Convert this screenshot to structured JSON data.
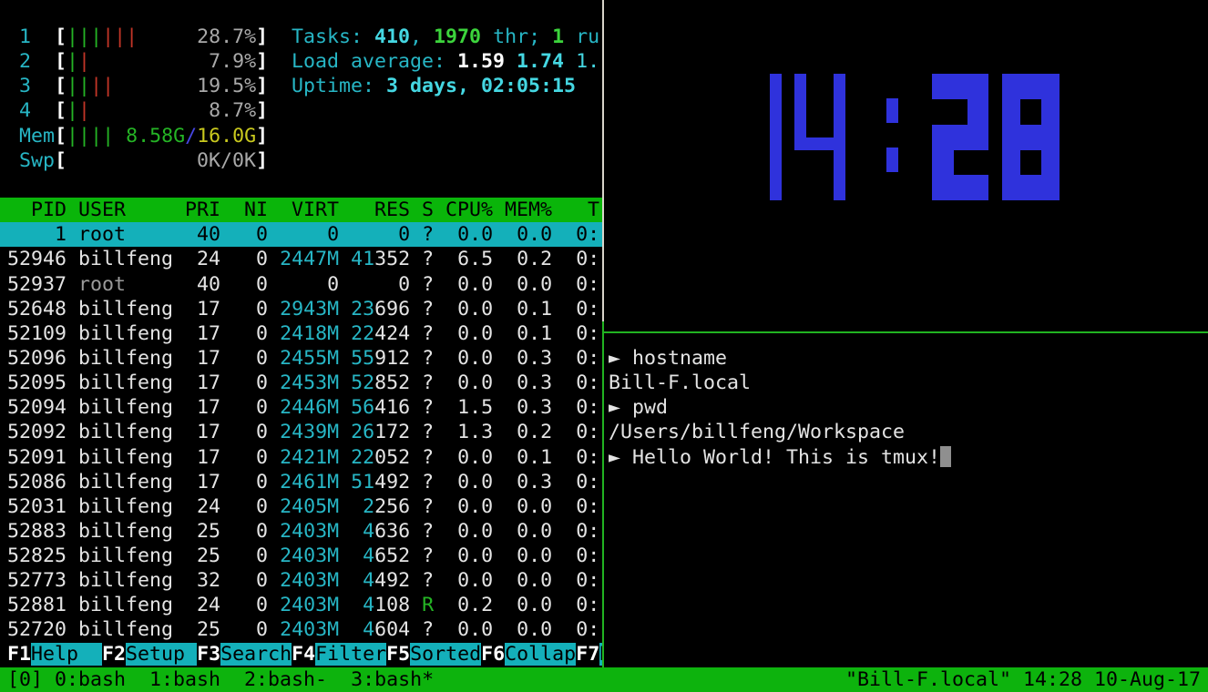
{
  "colors": {
    "accent_cyan": "#27b6c5",
    "header_green_bg": "#0ab50a",
    "selection_cyan_bg": "#14b0ba",
    "status_green_bg": "#0db30d",
    "border_green": "#21b321",
    "border_white": "#d8d5ca",
    "clock_blue": "#2f32dc",
    "bar_pipe_green": "#25b425",
    "bar_pipe_red": "#c23527",
    "mem_used_yellow": "#c9c91e"
  },
  "htop": {
    "meters": [
      {
        "label": " 1  ",
        "pipes": [
          "g",
          "g",
          "g",
          "r",
          "r",
          "r"
        ],
        "right": [
          {
            "t": "28.7%",
            "c": "gray"
          }
        ]
      },
      {
        "label": " 2  ",
        "pipes": [
          "g",
          "r"
        ],
        "right": [
          {
            "t": "7.9%",
            "c": "gray"
          }
        ]
      },
      {
        "label": " 3  ",
        "pipes": [
          "g",
          "g",
          "r",
          "r"
        ],
        "right": [
          {
            "t": "19.5%",
            "c": "gray"
          }
        ]
      },
      {
        "label": " 4  ",
        "pipes": [
          "g",
          "r"
        ],
        "right": [
          {
            "t": "8.7%",
            "c": "gray"
          }
        ]
      },
      {
        "label": " Mem",
        "pipes": [
          "g",
          "g",
          "g",
          "g"
        ],
        "right": [
          {
            "t": "8.58G",
            "c": "green"
          },
          {
            "t": "/",
            "c": "blue"
          },
          {
            "t": "16.0G",
            "c": "yellow"
          }
        ]
      },
      {
        "label": " Swp",
        "pipes": [],
        "right": [
          {
            "t": "0K/0K",
            "c": "gray"
          }
        ]
      }
    ],
    "summary_lines": [
      [
        {
          "t": "Tasks: ",
          "c": "cy"
        },
        {
          "t": "410",
          "c": "bcyb"
        },
        {
          "t": ", ",
          "c": "cy"
        },
        {
          "t": "1970",
          "c": "gb"
        },
        {
          "t": " thr; ",
          "c": "cy"
        },
        {
          "t": "1",
          "c": "gb"
        },
        {
          "t": " ru",
          "c": "cy"
        }
      ],
      [
        {
          "t": "Load average: ",
          "c": "cy"
        },
        {
          "t": "1.59",
          "c": "wb"
        },
        {
          "t": " ",
          "c": "cy"
        },
        {
          "t": "1.74",
          "c": "bcyb"
        },
        {
          "t": " 1.",
          "c": "bcy"
        }
      ],
      [
        {
          "t": "Uptime: ",
          "c": "cy"
        },
        {
          "t": "3 days, 02:05:15",
          "c": "bcyb"
        }
      ]
    ],
    "table": {
      "header": "  PID USER     PRI  NI  VIRT   RES S CPU% MEM%   T",
      "rows": [
        {
          "pid": "1",
          "user": "root",
          "pri": "40",
          "ni": "0",
          "virt": "0",
          "resPre": "",
          "resSuf": "0",
          "s": "?",
          "cpu": "0.0",
          "mem": "0.0",
          "time": "0:",
          "selected": true
        },
        {
          "pid": "52946",
          "user": "billfeng",
          "pri": "24",
          "ni": "0",
          "virt": "2447M",
          "resPre": "41",
          "resSuf": "352",
          "s": "?",
          "cpu": "6.5",
          "mem": "0.2",
          "time": "0:"
        },
        {
          "pid": "52937",
          "user": "root",
          "pri": "40",
          "ni": "0",
          "virt": "0",
          "resPre": "",
          "resSuf": "0",
          "s": "?",
          "cpu": "0.0",
          "mem": "0.0",
          "time": "0:"
        },
        {
          "pid": "52648",
          "user": "billfeng",
          "pri": "17",
          "ni": "0",
          "virt": "2943M",
          "resPre": "23",
          "resSuf": "696",
          "s": "?",
          "cpu": "0.0",
          "mem": "0.1",
          "time": "0:"
        },
        {
          "pid": "52109",
          "user": "billfeng",
          "pri": "17",
          "ni": "0",
          "virt": "2418M",
          "resPre": "22",
          "resSuf": "424",
          "s": "?",
          "cpu": "0.0",
          "mem": "0.1",
          "time": "0:"
        },
        {
          "pid": "52096",
          "user": "billfeng",
          "pri": "17",
          "ni": "0",
          "virt": "2455M",
          "resPre": "55",
          "resSuf": "912",
          "s": "?",
          "cpu": "0.0",
          "mem": "0.3",
          "time": "0:"
        },
        {
          "pid": "52095",
          "user": "billfeng",
          "pri": "17",
          "ni": "0",
          "virt": "2453M",
          "resPre": "52",
          "resSuf": "852",
          "s": "?",
          "cpu": "0.0",
          "mem": "0.3",
          "time": "0:"
        },
        {
          "pid": "52094",
          "user": "billfeng",
          "pri": "17",
          "ni": "0",
          "virt": "2446M",
          "resPre": "56",
          "resSuf": "416",
          "s": "?",
          "cpu": "1.5",
          "mem": "0.3",
          "time": "0:"
        },
        {
          "pid": "52092",
          "user": "billfeng",
          "pri": "17",
          "ni": "0",
          "virt": "2439M",
          "resPre": "26",
          "resSuf": "172",
          "s": "?",
          "cpu": "1.3",
          "mem": "0.2",
          "time": "0:"
        },
        {
          "pid": "52091",
          "user": "billfeng",
          "pri": "17",
          "ni": "0",
          "virt": "2421M",
          "resPre": "22",
          "resSuf": "052",
          "s": "?",
          "cpu": "0.0",
          "mem": "0.1",
          "time": "0:"
        },
        {
          "pid": "52086",
          "user": "billfeng",
          "pri": "17",
          "ni": "0",
          "virt": "2461M",
          "resPre": "51",
          "resSuf": "492",
          "s": "?",
          "cpu": "0.0",
          "mem": "0.3",
          "time": "0:"
        },
        {
          "pid": "52031",
          "user": "billfeng",
          "pri": "24",
          "ni": "0",
          "virt": "2405M",
          "resPre": "2",
          "resSuf": "256",
          "s": "?",
          "cpu": "0.0",
          "mem": "0.0",
          "time": "0:"
        },
        {
          "pid": "52883",
          "user": "billfeng",
          "pri": "25",
          "ni": "0",
          "virt": "2403M",
          "resPre": "4",
          "resSuf": "636",
          "s": "?",
          "cpu": "0.0",
          "mem": "0.0",
          "time": "0:"
        },
        {
          "pid": "52825",
          "user": "billfeng",
          "pri": "25",
          "ni": "0",
          "virt": "2403M",
          "resPre": "4",
          "resSuf": "652",
          "s": "?",
          "cpu": "0.0",
          "mem": "0.0",
          "time": "0:"
        },
        {
          "pid": "52773",
          "user": "billfeng",
          "pri": "32",
          "ni": "0",
          "virt": "2403M",
          "resPre": "4",
          "resSuf": "492",
          "s": "?",
          "cpu": "0.0",
          "mem": "0.0",
          "time": "0:"
        },
        {
          "pid": "52881",
          "user": "billfeng",
          "pri": "24",
          "ni": "0",
          "virt": "2403M",
          "resPre": "4",
          "resSuf": "108",
          "s": "R",
          "cpu": "0.2",
          "mem": "0.0",
          "time": "0:"
        },
        {
          "pid": "52720",
          "user": "billfeng",
          "pri": "25",
          "ni": "0",
          "virt": "2403M",
          "resPre": "4",
          "resSuf": "604",
          "s": "?",
          "cpu": "0.0",
          "mem": "0.0",
          "time": "0:"
        }
      ]
    },
    "fkeys": [
      {
        "key": "F1",
        "label": "Help  "
      },
      {
        "key": "F2",
        "label": "Setup "
      },
      {
        "key": "F3",
        "label": "Search"
      },
      {
        "key": "F4",
        "label": "Filter"
      },
      {
        "key": "F5",
        "label": "Sorted"
      },
      {
        "key": "F6",
        "label": "Collap"
      },
      {
        "key": "F7",
        "label": "N"
      }
    ]
  },
  "clock": {
    "time": "14:28"
  },
  "terminal": {
    "prompt_symbol": "►",
    "lines": [
      {
        "prompt": true,
        "text": "hostname"
      },
      {
        "prompt": false,
        "text": "Bill-F.local"
      },
      {
        "prompt": true,
        "text": "pwd"
      },
      {
        "prompt": false,
        "text": "/Users/billfeng/Workspace"
      },
      {
        "prompt": true,
        "text": "Hello World! This is tmux!",
        "cursor": true
      }
    ]
  },
  "status_bar": {
    "session": "[0]",
    "windows": [
      "0:bash",
      "1:bash",
      "2:bash-",
      "3:bash*"
    ],
    "right": "\"Bill-F.local\" 14:28 10-Aug-17"
  }
}
